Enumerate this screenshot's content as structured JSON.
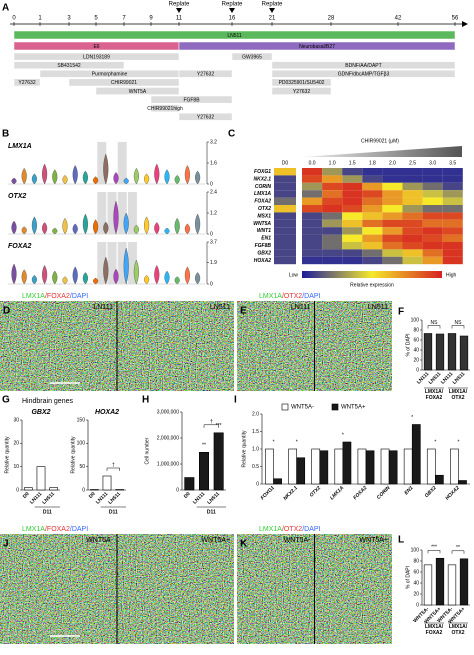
{
  "chart_data": [
    {
      "panel": "A",
      "type": "timeline",
      "xticks": [
        0,
        1,
        3,
        5,
        7,
        9,
        11,
        16,
        21,
        28,
        42,
        56
      ],
      "markers": [
        {
          "label": "Replate",
          "day": 11
        },
        {
          "label": "Replate",
          "day": 16
        },
        {
          "label": "Replate",
          "day": 21
        }
      ],
      "bar_color": "#dcdcdc",
      "bars": [
        {
          "label": "LN511",
          "start": 0,
          "end": 56,
          "color": "#5cb85c"
        },
        {
          "label": "E6",
          "start": 0,
          "end": 11,
          "color": "#d9628e"
        },
        {
          "label": "Neurobasal/B27",
          "start": 11,
          "end": 56,
          "color": "#8e6bbf"
        },
        {
          "label": "LDN193189",
          "start": 0,
          "end": 11
        },
        {
          "label": "GW3965",
          "start": 16,
          "end": 21
        },
        {
          "label": "SB431542",
          "start": 0,
          "end": 7
        },
        {
          "label": "BDNF/AA/DAPT",
          "start": 21,
          "end": 56
        },
        {
          "label": "Purmorphamine",
          "start": 1,
          "end": 11
        },
        {
          "label": "Y27632",
          "start": 11,
          "end": 16
        },
        {
          "label": "GDNF/dbcAMP/TGFβ3",
          "start": 21,
          "end": 56
        },
        {
          "label": "Y27632",
          "start": 0,
          "end": 1
        },
        {
          "label": "CHIR99021",
          "start": 3,
          "end": 11
        },
        {
          "label": "PD0325901/SU5402",
          "start": 21,
          "end": 28
        },
        {
          "label": "WNT5A",
          "start": 5,
          "end": 11
        },
        {
          "label": "Y27632",
          "start": 21,
          "end": 28
        },
        {
          "label": "FGF8B",
          "start": 9,
          "end": 16
        },
        {
          "label": "CHIR99021high",
          "start": 9,
          "end": 11
        },
        {
          "label": "Y27632",
          "start": 11,
          "end": 16
        }
      ]
    },
    {
      "panel": "B",
      "type": "violin",
      "genes": [
        {
          "name": "LMX1A",
          "yticks": [
            0,
            1.6,
            3.2
          ]
        },
        {
          "name": "OTX2",
          "yticks": [
            0,
            1.2,
            2.4
          ]
        },
        {
          "name": "FOXA2",
          "yticks": [
            0,
            1.9,
            3.7
          ]
        }
      ]
    },
    {
      "panel": "C",
      "type": "heatmap",
      "title": "CHIR99021 (μM)",
      "columns": [
        "D0",
        "0.0",
        "1.0",
        "1.5",
        "1.8",
        "2.0",
        "2.5",
        "3.0",
        "3.5"
      ],
      "rows": [
        "FOXG1",
        "NKX2.1",
        "CORIN",
        "LMX1A",
        "FOXA2",
        "OTX2",
        "MSX1",
        "WNT5A",
        "WNT1",
        "EN1",
        "FGF8B",
        "GBX2",
        "HOXA2"
      ],
      "values": [
        [
          0.6,
          0.95,
          0.3,
          0.1,
          0.05,
          0.05,
          0.05,
          0.05,
          0.05
        ],
        [
          0.1,
          0.9,
          0.7,
          0.3,
          0.1,
          0.05,
          0.05,
          0.05,
          0.05
        ],
        [
          0.1,
          0.3,
          0.9,
          0.95,
          0.7,
          0.5,
          0.3,
          0.2,
          0.1
        ],
        [
          0.1,
          0.2,
          0.8,
          0.95,
          0.9,
          0.7,
          0.6,
          0.4,
          0.3
        ],
        [
          0.2,
          0.7,
          0.9,
          0.95,
          0.8,
          0.7,
          0.6,
          0.5,
          0.4
        ],
        [
          0.6,
          0.9,
          0.95,
          0.9,
          0.7,
          0.5,
          0.3,
          0.2,
          0.2
        ],
        [
          0.1,
          0.1,
          0.2,
          0.5,
          0.6,
          0.7,
          0.8,
          0.9,
          0.9
        ],
        [
          0.1,
          0.1,
          0.3,
          0.6,
          0.8,
          0.9,
          0.9,
          0.8,
          0.8
        ],
        [
          0.1,
          0.1,
          0.1,
          0.3,
          0.5,
          0.7,
          0.9,
          0.95,
          0.9
        ],
        [
          0.1,
          0.1,
          0.2,
          0.5,
          0.7,
          0.9,
          0.95,
          0.9,
          0.8
        ],
        [
          0.1,
          0.1,
          0.2,
          0.4,
          0.6,
          0.8,
          0.9,
          0.95,
          0.95
        ],
        [
          0.1,
          0.1,
          0.1,
          0.1,
          0.2,
          0.4,
          0.6,
          0.8,
          0.95
        ],
        [
          0.1,
          0.05,
          0.05,
          0.05,
          0.1,
          0.2,
          0.4,
          0.7,
          0.95
        ]
      ],
      "colors": [
        "#1c1c9c",
        "#f5e92a",
        "#d62020"
      ],
      "low_label": "Low",
      "high_label": "High",
      "scale_label": "Relative expression"
    },
    {
      "panel": "D",
      "type": "image",
      "title_parts": [
        {
          "text": "LMX1A",
          "color": "#33cc33"
        },
        {
          "text": "/FOXA2",
          "color": "#e33333"
        },
        {
          "text": "/DAPI",
          "color": "#3366ff"
        }
      ],
      "labels": [
        "LN111",
        "LN511"
      ]
    },
    {
      "panel": "E",
      "type": "image",
      "title_parts": [
        {
          "text": "LMX1A",
          "color": "#33cc33"
        },
        {
          "text": "/OTX2",
          "color": "#e33333"
        },
        {
          "text": "/DAPI",
          "color": "#3366ff"
        }
      ],
      "labels": [
        "LN111",
        "LN511"
      ]
    },
    {
      "panel": "F",
      "type": "bar",
      "ylabel": "% of DAPI",
      "ylim": [
        0,
        100
      ],
      "yticks": [
        0,
        20,
        40,
        60,
        80,
        100
      ],
      "categories": [
        "LN111",
        "LN511",
        "LN111",
        "LN511"
      ],
      "values": [
        73,
        72,
        73,
        68
      ],
      "color": "#333333",
      "groups": [
        "LMX1A/FOXA2",
        "LMX1A/OTX2"
      ],
      "annotations": [
        "NS",
        "NS"
      ]
    },
    {
      "panel": "G",
      "type": "bar",
      "heading": "Hindbrain genes",
      "title": "GBX2",
      "ylabel": "Relative quantity",
      "ylim": [
        0,
        30
      ],
      "yticks": [
        0,
        10,
        20,
        30
      ],
      "categories": [
        "D0",
        "LN111",
        "LN511"
      ],
      "values": [
        1,
        10,
        1
      ],
      "color": "#ffffff",
      "xlabel": "D11"
    },
    {
      "type": "bar",
      "title": "HOXA2",
      "ylabel": "Relative quantity",
      "ylim": [
        0,
        150
      ],
      "yticks": [
        0,
        50,
        100,
        150
      ],
      "categories": [
        "D0",
        "LN111",
        "LN511"
      ],
      "values": [
        1,
        30,
        1
      ],
      "color": "#ffffff",
      "xlabel": "D11",
      "annotations": [
        "†"
      ]
    },
    {
      "panel": "H",
      "type": "bar",
      "ylabel": "Cell number",
      "ylim": [
        0,
        3000000
      ],
      "yticks": [
        0,
        {
          "value": 1000000,
          "label": "1,000,000"
        },
        {
          "value": 2000000,
          "label": "2,000,000"
        },
        {
          "value": 3000000,
          "label": "3,000,000"
        }
      ],
      "categories": [
        "D0",
        "LN111",
        "LN511"
      ],
      "values": [
        480000,
        1450000,
        2200000
      ],
      "color": "#1a1a1a",
      "xlabel": "D11",
      "annotations": [
        "**",
        "***",
        "†"
      ]
    },
    {
      "panel": "I",
      "type": "bar",
      "ylabel": "Relative quantity",
      "ylim": [
        0,
        2
      ],
      "yticks": [
        0,
        0.5,
        {
          "value": 1,
          "label": "1.0"
        },
        1.5,
        {
          "value": 2,
          "label": "2.0"
        }
      ],
      "categories": [
        "FOXG1",
        "NKX2.1",
        "OTX2",
        "LMX1A",
        "FOXA2",
        "CORIN",
        "EN1",
        "GBX2",
        "HOXA2"
      ],
      "series": [
        {
          "name": "WNT5A-",
          "color": "#ffffff",
          "values": [
            1,
            1,
            1,
            1,
            1,
            1,
            1,
            1,
            1
          ]
        },
        {
          "name": "WNT5A+",
          "color": "#1a1a1a",
          "values": [
            0.15,
            0.75,
            0.95,
            1.2,
            0.95,
            0.95,
            1.7,
            0.25,
            0.1
          ]
        }
      ],
      "annotations": [
        "*",
        "*",
        "*",
        "*",
        "*",
        "*"
      ]
    },
    {
      "panel": "J",
      "type": "image",
      "title_parts": [
        {
          "text": "LMX1A",
          "color": "#33cc33"
        },
        {
          "text": "/FOXA2",
          "color": "#e33333"
        },
        {
          "text": "/DAPI",
          "color": "#3366ff"
        }
      ],
      "labels": [
        "WNT5A-",
        "WNT5A+"
      ]
    },
    {
      "panel": "K",
      "type": "image",
      "title_parts": [
        {
          "text": "LMX1A",
          "color": "#33cc33"
        },
        {
          "text": "/OTX2",
          "color": "#e33333"
        },
        {
          "text": "/DAPI",
          "color": "#3366ff"
        }
      ],
      "labels": [
        "WNT5A-",
        "WNT5A+"
      ]
    },
    {
      "panel": "L",
      "type": "bar",
      "ylabel": "% of DAPI",
      "ylim": [
        0,
        100
      ],
      "yticks": [
        0,
        20,
        40,
        60,
        80,
        100
      ],
      "categories": [
        "WNT5A-",
        "WNT5A+",
        "WNT5A-",
        "WNT5A+"
      ],
      "values": [
        73,
        85,
        73,
        84
      ],
      "colors": [
        "#ffffff",
        "#1a1a1a",
        "#ffffff",
        "#1a1a1a"
      ],
      "groups": [
        "LMX1A/FOXA2",
        "LMX1A/OTX2"
      ],
      "annotations": [
        "***",
        "**"
      ]
    }
  ]
}
